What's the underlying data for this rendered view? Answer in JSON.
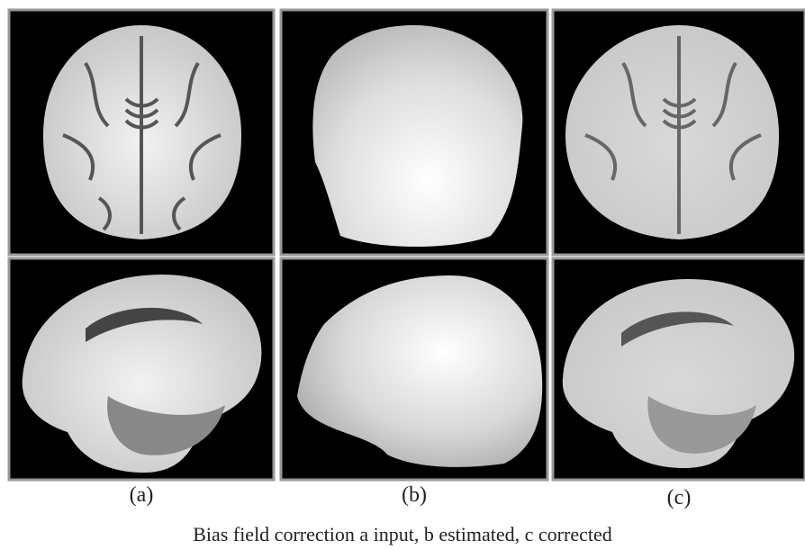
{
  "panels": [
    {
      "label": "(a)"
    },
    {
      "label": "(b)"
    },
    {
      "label": "(c)"
    }
  ],
  "caption": "Bias field correction a input, b estimated, c corrected"
}
